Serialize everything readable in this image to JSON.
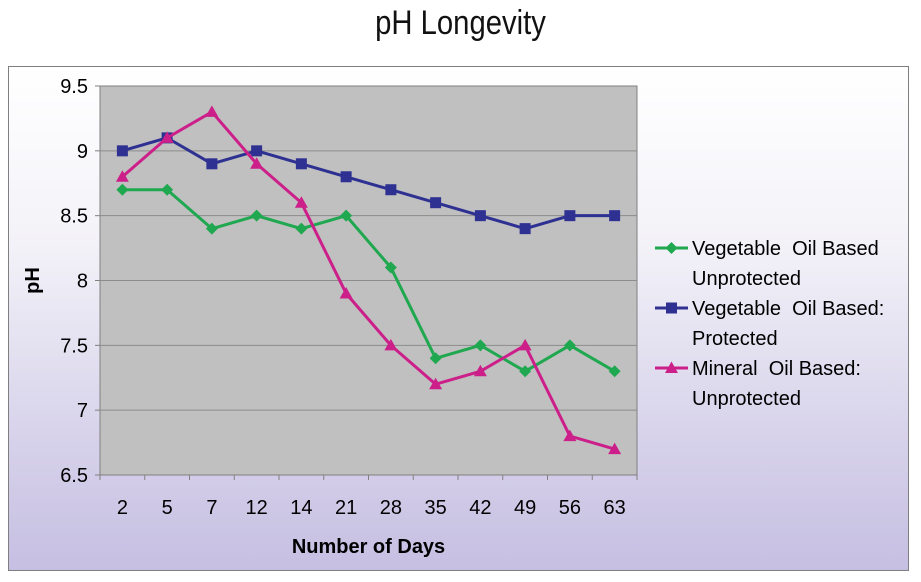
{
  "page_title": "pH Longevity",
  "chart_data": {
    "type": "line",
    "title": "pH Longevity",
    "xlabel": "Number of Days",
    "ylabel": "pH",
    "categories": [
      "2",
      "5",
      "7",
      "12",
      "14",
      "21",
      "28",
      "35",
      "42",
      "49",
      "56",
      "63"
    ],
    "ylim": [
      6.5,
      9.5
    ],
    "yticks": [
      "6.5",
      "7",
      "7.5",
      "8",
      "8.5",
      "9",
      "9.5"
    ],
    "grid": "horizontal",
    "legend_position": "right",
    "series": [
      {
        "name": "Vegetable  Oil Based Unprotected",
        "legend_lines": [
          "Vegetable  Oil Based",
          "Unprotected"
        ],
        "marker": "diamond",
        "color": "#1fa84f",
        "values": [
          8.7,
          8.7,
          8.4,
          8.5,
          8.4,
          8.5,
          8.1,
          7.4,
          7.5,
          7.3,
          7.5,
          7.3
        ]
      },
      {
        "name": "Vegetable  Oil Based: Protected",
        "legend_lines": [
          "Vegetable  Oil Based:",
          "Protected"
        ],
        "marker": "square",
        "color": "#2e3192",
        "values": [
          9.0,
          9.1,
          8.9,
          9.0,
          8.9,
          8.8,
          8.7,
          8.6,
          8.5,
          8.4,
          8.5,
          8.5
        ]
      },
      {
        "name": "Mineral  Oil Based: Unprotected",
        "legend_lines": [
          "Mineral  Oil Based:",
          "Unprotected"
        ],
        "marker": "triangle",
        "color": "#cc1f8a",
        "values": [
          8.8,
          9.1,
          9.3,
          8.9,
          8.6,
          7.9,
          7.5,
          7.2,
          7.3,
          7.5,
          6.8,
          6.7
        ]
      }
    ]
  }
}
